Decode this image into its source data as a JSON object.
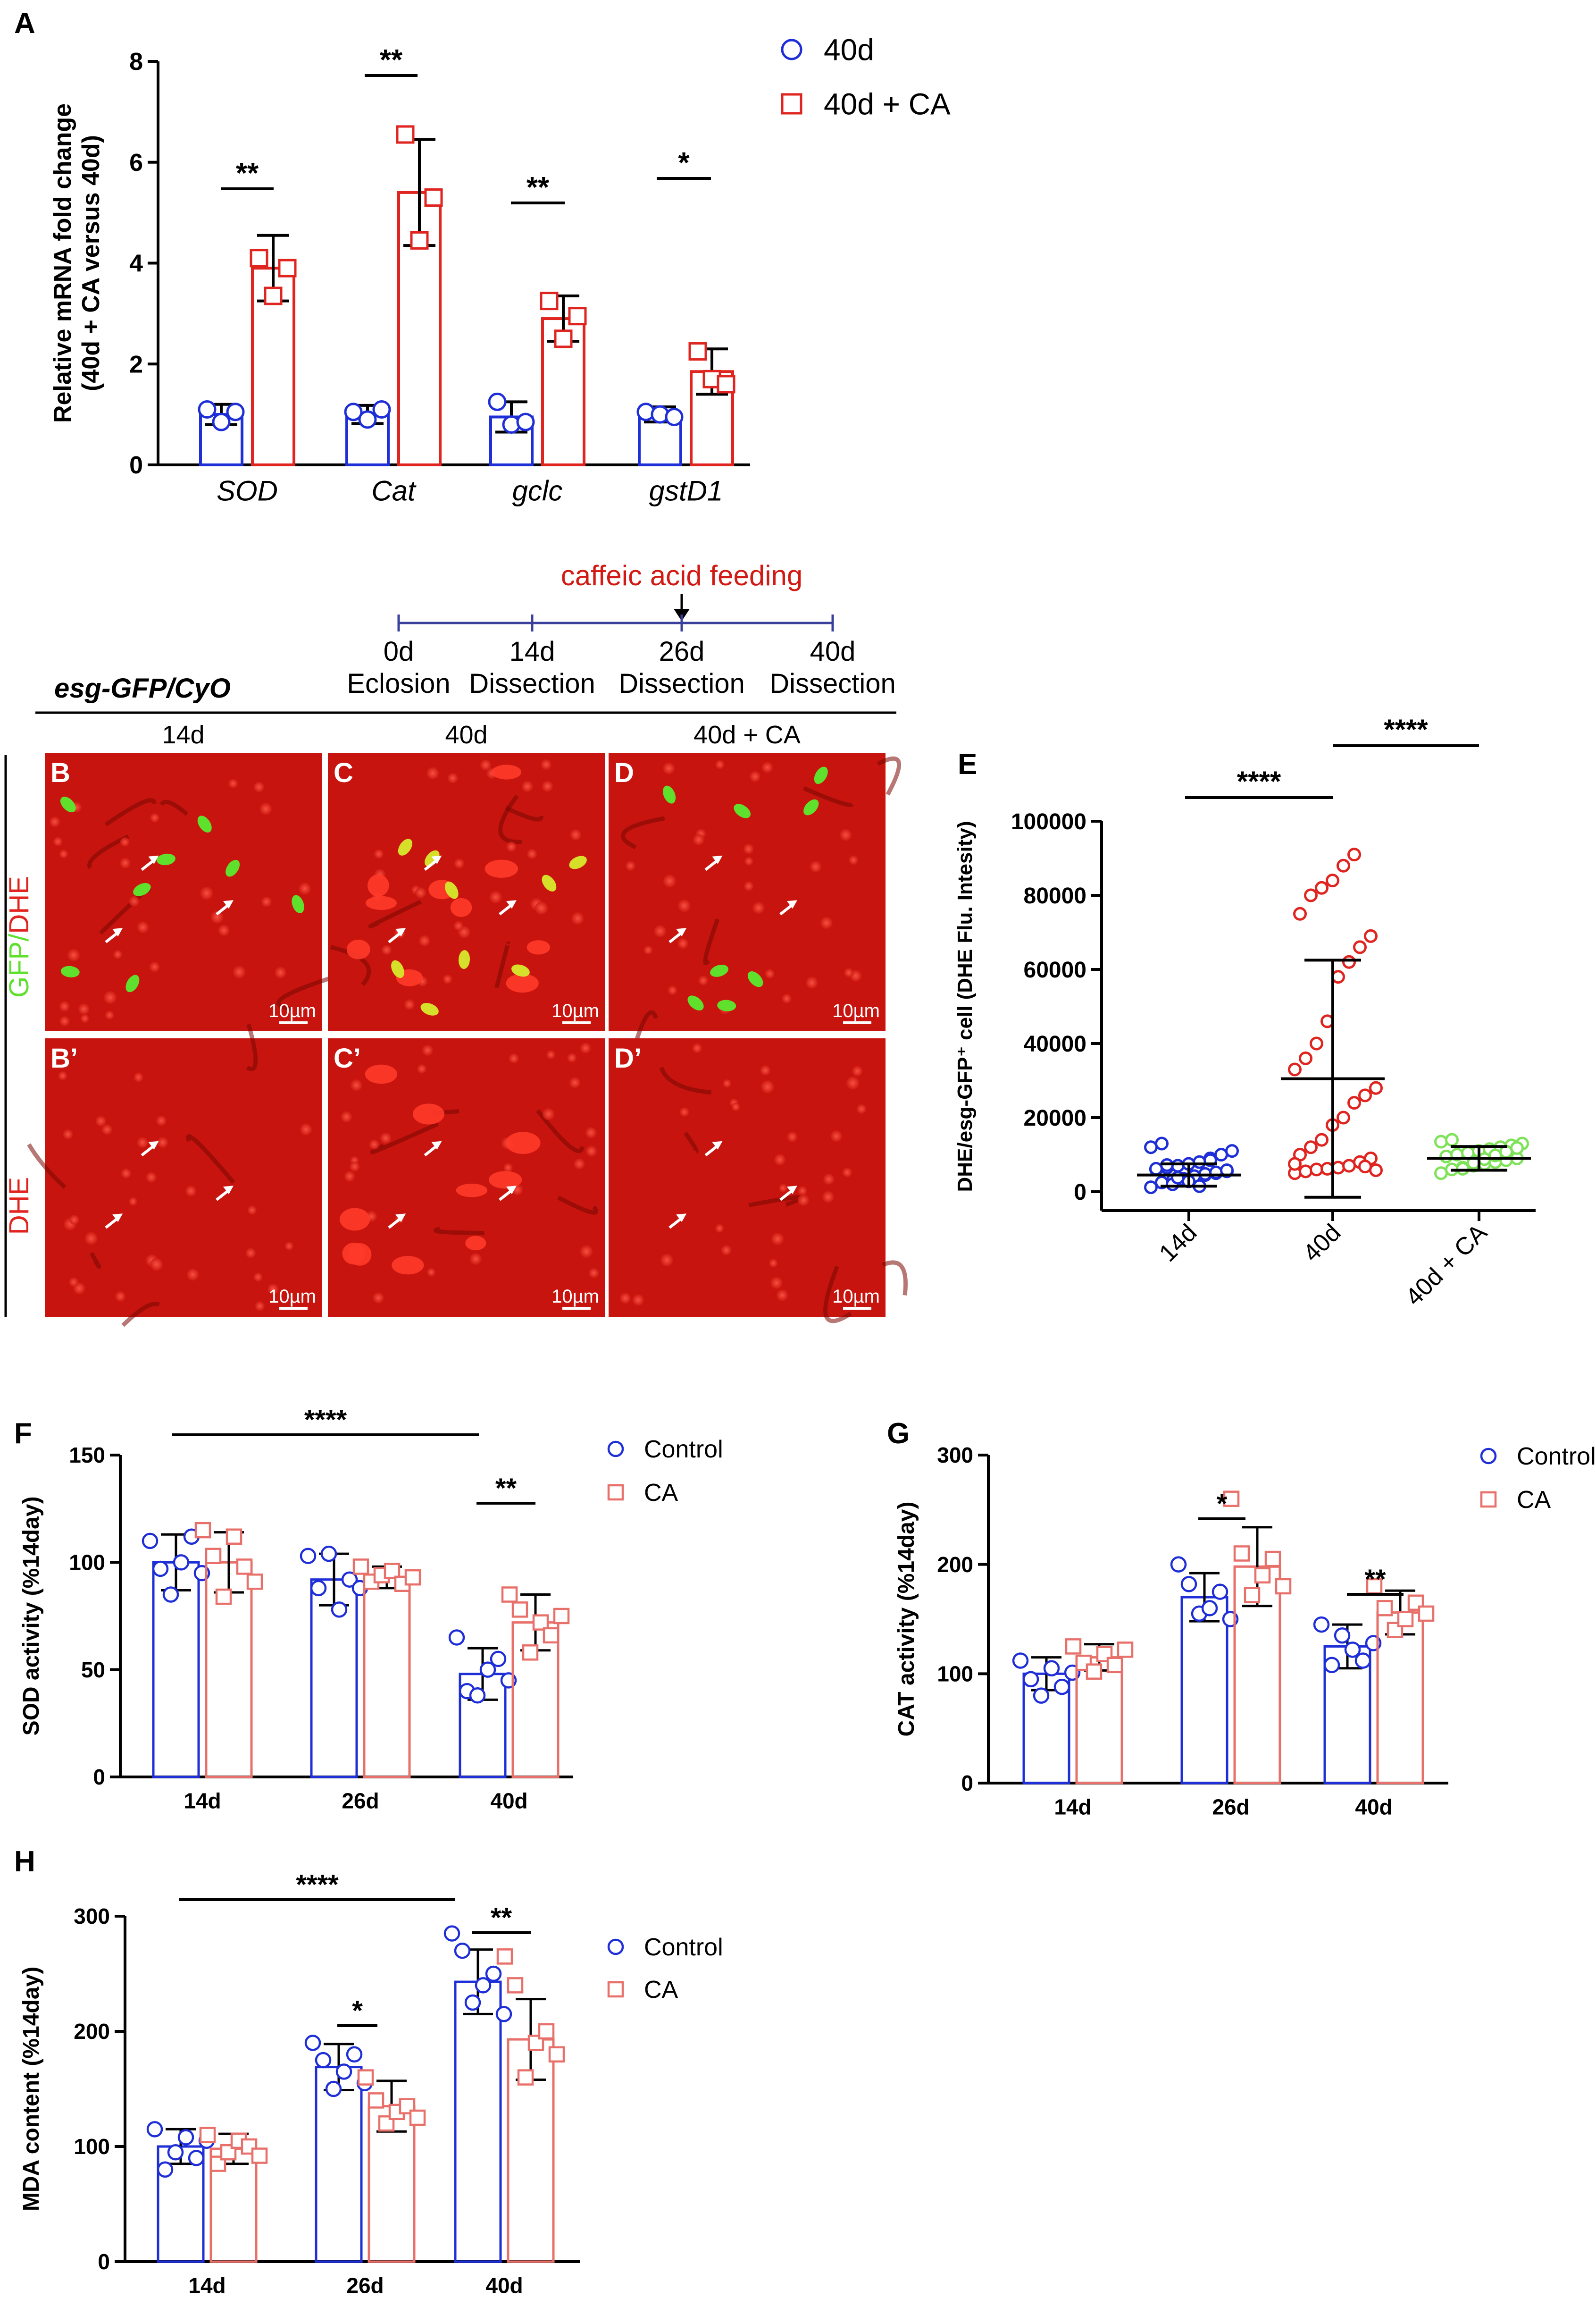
{
  "panel_letters": [
    "A",
    "B",
    "C",
    "D",
    "E",
    "F",
    "G",
    "H"
  ],
  "colors": {
    "blue": "#1f2fd8",
    "red": "#e0241f",
    "salmon": "#e8706a",
    "green": "#7fe35a",
    "navy": "#2b2fa0",
    "tissue": "#c8140e"
  },
  "timeline": {
    "treatment": "caffeic acid feeding",
    "genotype": "esg-GFP/CyO",
    "points": [
      {
        "day": "0d",
        "event": "Eclosion"
      },
      {
        "day": "14d",
        "event": "Dissection"
      },
      {
        "day": "26d",
        "event": "Dissection"
      },
      {
        "day": "40d",
        "event": "Dissection"
      }
    ],
    "feeding_start_index": 2
  },
  "micrographs": {
    "columns": [
      "14d",
      "40d",
      "40d + CA"
    ],
    "row_labels": {
      "gfp": "GFP",
      "slash": "/",
      "dhe": "DHE",
      "dhe_only": "DHE"
    },
    "panel_ids": [
      [
        "B",
        "C",
        "D"
      ],
      [
        "B’",
        "C’",
        "D’"
      ]
    ],
    "scale_bar": "10µm"
  },
  "chart_data": [
    {
      "id": "A",
      "type": "bar",
      "ylabel": "Relative mRNA fold change",
      "ylabel2": "(40d + CA versus 40d)",
      "categories": [
        "SOD",
        "Cat",
        "gclc",
        "gstD1"
      ],
      "ylim": [
        0,
        8
      ],
      "yticks": [
        0,
        2,
        4,
        6,
        8
      ],
      "legend": [
        "40d",
        "40d + CA"
      ],
      "series": [
        {
          "name": "40d",
          "values": [
            1.0,
            1.0,
            0.95,
            1.0
          ],
          "sd": [
            0.2,
            0.18,
            0.3,
            0.15
          ],
          "points": [
            [
              1.1,
              0.85,
              1.05
            ],
            [
              1.05,
              0.9,
              1.1
            ],
            [
              1.25,
              0.8,
              0.85
            ],
            [
              1.05,
              1.0,
              0.95
            ]
          ]
        },
        {
          "name": "40d + CA",
          "values": [
            3.9,
            5.4,
            2.9,
            1.85
          ],
          "sd": [
            0.65,
            1.05,
            0.45,
            0.45
          ],
          "points": [
            [
              4.1,
              3.35,
              3.9
            ],
            [
              6.55,
              4.45,
              5.3
            ],
            [
              3.25,
              2.5,
              2.95
            ],
            [
              2.25,
              1.7,
              1.6
            ]
          ]
        }
      ],
      "significance": [
        "**",
        "**",
        "**",
        "*"
      ]
    },
    {
      "id": "E",
      "type": "scatter",
      "ylabel": "DHE/esg-GFP⁺ cell (DHE Flu. Intesity)",
      "categories": [
        "14d",
        "40d",
        "40d + CA"
      ],
      "ylim": [
        0,
        100000
      ],
      "yticks": [
        0,
        20000,
        40000,
        60000,
        80000,
        100000
      ],
      "means": [
        4500,
        30500,
        9000
      ],
      "sd": [
        3000,
        32000,
        3200
      ],
      "points": [
        [
          1200,
          2500,
          3000,
          3500,
          4000,
          4500,
          5000,
          5500,
          6000,
          6500,
          7000,
          7500,
          8000,
          9000,
          10000,
          11000,
          12000,
          13000,
          2000,
          3300,
          4200,
          4800,
          5200,
          5800,
          6200,
          7200,
          3800,
          2800,
          1500,
          8500
        ],
        [
          5000,
          5500,
          6000,
          6200,
          6500,
          7000,
          8000,
          9000,
          10000,
          12000,
          14000,
          18000,
          20000,
          24000,
          26000,
          28000,
          33000,
          36000,
          40000,
          46000,
          58000,
          62000,
          66000,
          69000,
          75000,
          80000,
          82000,
          84000,
          88000,
          91000,
          6800,
          5800,
          7500
        ],
        [
          5000,
          6000,
          6500,
          7000,
          7500,
          8000,
          8500,
          9000,
          9500,
          10000,
          10500,
          11000,
          11500,
          12000,
          12500,
          13000,
          13500,
          14000,
          6200,
          7800,
          8800,
          9800,
          10800,
          11800
        ]
      ],
      "significance": [
        "****",
        "****"
      ]
    },
    {
      "id": "F",
      "type": "bar",
      "ylabel": "SOD activity (%14day)",
      "categories": [
        "14d",
        "26d",
        "40d"
      ],
      "ylim": [
        0,
        150
      ],
      "yticks": [
        0,
        50,
        100,
        150
      ],
      "legend": [
        "Control",
        "CA"
      ],
      "series": [
        {
          "name": "Control",
          "values": [
            100,
            92,
            48
          ],
          "sd": [
            13,
            12,
            12
          ],
          "points": [
            [
              110,
              97,
              85,
              100,
              112,
              95
            ],
            [
              103,
              88,
              104,
              78,
              92,
              88
            ],
            [
              65,
              40,
              38,
              50,
              55,
              45
            ]
          ]
        },
        {
          "name": "CA",
          "values": [
            100,
            93,
            72
          ],
          "sd": [
            14,
            5,
            13
          ],
          "points": [
            [
              115,
              103,
              84,
              112,
              98,
              91
            ],
            [
              98,
              91,
              94,
              96,
              90,
              93
            ],
            [
              85,
              78,
              58,
              72,
              66,
              75
            ]
          ]
        }
      ],
      "significance": [
        "****",
        "**"
      ]
    },
    {
      "id": "G",
      "type": "bar",
      "ylabel": "CAT activity (%14day)",
      "categories": [
        "14d",
        "26d",
        "40d"
      ],
      "ylim": [
        0,
        300
      ],
      "yticks": [
        0,
        100,
        200,
        300
      ],
      "legend": [
        "Control",
        "CA"
      ],
      "series": [
        {
          "name": "Control",
          "values": [
            100,
            170,
            125
          ],
          "sd": [
            15,
            22,
            20
          ],
          "points": [
            [
              112,
              95,
              80,
              105,
              88,
              101
            ],
            [
              200,
              182,
              155,
              160,
              175,
              150
            ],
            [
              145,
              108,
              135,
              122,
              112,
              128
            ]
          ]
        },
        {
          "name": "CA",
          "values": [
            115,
            198,
            156
          ],
          "sd": [
            12,
            36,
            20
          ],
          "points": [
            [
              125,
              110,
              102,
              118,
              108,
              122
            ],
            [
              260,
              210,
              172,
              190,
              205,
              180
            ],
            [
              180,
              160,
              140,
              150,
              165,
              155
            ]
          ]
        }
      ],
      "significance": [
        "*",
        "**"
      ]
    },
    {
      "id": "H",
      "type": "bar",
      "ylabel": "MDA content (%14day)",
      "categories": [
        "14d",
        "26d",
        "40d"
      ],
      "ylim": [
        0,
        300
      ],
      "yticks": [
        0,
        100,
        200,
        300
      ],
      "legend": [
        "Control",
        "CA"
      ],
      "series": [
        {
          "name": "Control",
          "values": [
            100,
            169,
            243
          ],
          "sd": [
            15,
            20,
            28
          ],
          "points": [
            [
              115,
              80,
              95,
              108,
              90,
              105
            ],
            [
              190,
              175,
              150,
              165,
              180,
              155
            ],
            [
              285,
              270,
              225,
              240,
              250,
              215
            ]
          ]
        },
        {
          "name": "CA",
          "values": [
            98,
            135,
            193
          ],
          "sd": [
            13,
            22,
            35
          ],
          "points": [
            [
              110,
              85,
              95,
              105,
              100,
              92
            ],
            [
              160,
              140,
              120,
              130,
              135,
              125
            ],
            [
              265,
              240,
              160,
              190,
              200,
              180
            ]
          ]
        }
      ],
      "significance": [
        "****",
        "*",
        "**"
      ]
    }
  ]
}
